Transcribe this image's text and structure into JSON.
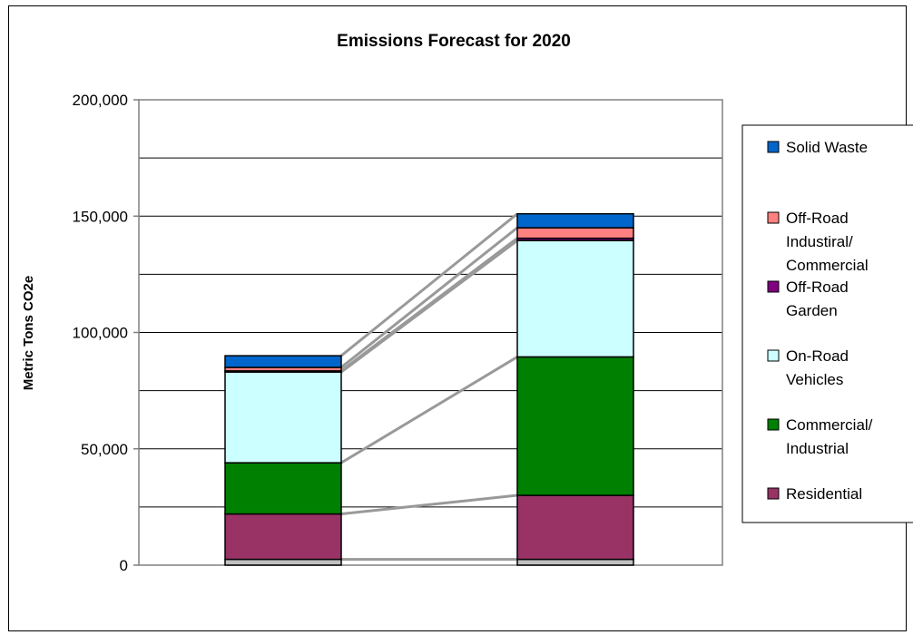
{
  "chart_data": {
    "type": "bar",
    "stacked": true,
    "title": "Emissions Forecast for 2020",
    "xlabel": "",
    "ylabel": "Metric Tons CO2e",
    "ylim": [
      0,
      200000
    ],
    "y_ticks": [
      "200,000",
      "150,000",
      "100,000",
      "50,000",
      "0"
    ],
    "y_tick_values": [
      200000,
      150000,
      100000,
      50000,
      0
    ],
    "gridlines": [
      25000,
      50000,
      75000,
      100000,
      125000,
      150000,
      175000
    ],
    "grid": true,
    "legend_position": "right",
    "categories": [
      "",
      ""
    ],
    "series": [
      {
        "key": "base",
        "name": "",
        "color": "#c0c0c0",
        "values": [
          2500,
          2500
        ]
      },
      {
        "key": "residential",
        "name": "Residential",
        "color": "#993366",
        "values": [
          19500,
          27500
        ]
      },
      {
        "key": "commercial",
        "name": "Commercial/ Industrial",
        "color": "#008000",
        "values": [
          22000,
          59500
        ]
      },
      {
        "key": "onroad",
        "name": "On-Road Vehicles",
        "color": "#ccffff",
        "values": [
          39000,
          50000
        ]
      },
      {
        "key": "garden",
        "name": "Off-Road Garden",
        "color": "#800080",
        "values": [
          500,
          1000
        ]
      },
      {
        "key": "offroad_ind",
        "name": "Off-Road Industiral/ Commercial",
        "color": "#ff8080",
        "values": [
          1500,
          4500
        ]
      },
      {
        "key": "solid_waste",
        "name": "Solid Waste",
        "color": "#0066cc",
        "values": [
          5000,
          6000
        ]
      }
    ],
    "legend": [
      {
        "lines": [
          "Solid Waste"
        ],
        "color": "#0066cc"
      },
      {
        "lines": [
          "Off-Road",
          "Industiral/",
          "Commercial"
        ],
        "color": "#ff8080"
      },
      {
        "lines": [
          "Off-Road",
          "Garden"
        ],
        "color": "#800080"
      },
      {
        "lines": [
          "On-Road",
          "Vehicles"
        ],
        "color": "#ccffff"
      },
      {
        "lines": [
          "Commercial/",
          "Industrial"
        ],
        "color": "#008000"
      },
      {
        "lines": [
          "Residential"
        ],
        "color": "#993366"
      }
    ]
  }
}
